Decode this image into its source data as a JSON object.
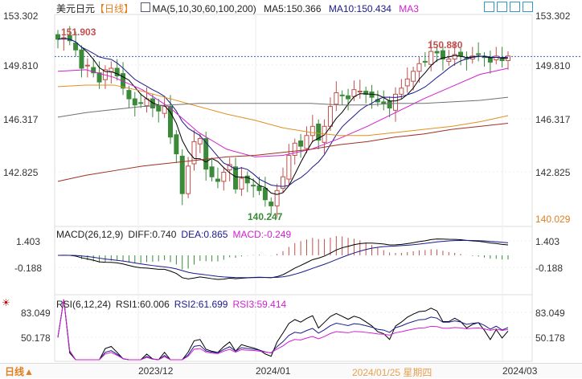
{
  "header": {
    "symbol": "美元日元",
    "period": "【日线】",
    "ma_label": "MA(5,10,30,60,100,200)",
    "ma5": "MA5:150.366",
    "ma10": "MA10:150.434",
    "ma3": "MA3"
  },
  "macd_header": {
    "label": "MACD(26,12,9)",
    "diff": "DIFF:0.740",
    "dea": "DEA:0.865",
    "macd": "MACD:-0.249"
  },
  "rsi_header": {
    "label": "RSI(6,12,24)",
    "rsi1": "RSI1:60.006",
    "rsi2": "RSI2:61.699",
    "rsi3": "RSI3:59.414"
  },
  "footer": {
    "period": "日线▲",
    "crosshair_date": "2024/01/25 星期四"
  },
  "colors": {
    "up": "#c0504d",
    "down": "#3a8a3a",
    "ma5": "#000000",
    "ma10": "#1a1a8c",
    "ma30": "#d020d0",
    "ma60": "#e09020",
    "ma100": "#707070",
    "ma200": "#a03020"
  },
  "chart_data": {
    "type": "candlestick",
    "price_ticks": [
      "153.302",
      "149.810",
      "146.317",
      "142.825"
    ],
    "last_label": "140.029",
    "annotations": {
      "high": "151.903",
      "low": "140.247",
      "recent_high": "150.880"
    },
    "x_ticks": [
      "2023/12",
      "2024/01",
      "2024/03"
    ],
    "macd_ticks": [
      "1.403",
      "-0.188"
    ],
    "rsi_ticks": [
      "83.049",
      "50.178"
    ],
    "closes": [
      151.5,
      151.6,
      151.4,
      150.8,
      149.6,
      149.8,
      149.3,
      148.7,
      149.5,
      149.6,
      149.1,
      148.3,
      147.6,
      147.2,
      147.3,
      147.6,
      147.0,
      146.8,
      147.1,
      145.1,
      144.0,
      141.4,
      143.2,
      144.8,
      145.0,
      143.0,
      142.5,
      142.2,
      142.8,
      143.3,
      141.7,
      142.4,
      142.1,
      141.9,
      141.6,
      141.0,
      140.6,
      141.6,
      142.5,
      143.9,
      144.7,
      144.5,
      145.2,
      145.8,
      144.9,
      145.8,
      147.1,
      148.0,
      147.8,
      147.6,
      148.2,
      148.1,
      147.9,
      147.7,
      147.4,
      147.3,
      147.0,
      147.9,
      148.3,
      148.9,
      149.4,
      149.9,
      150.0,
      150.7,
      150.6,
      150.2,
      150.2,
      150.5,
      150.4,
      150.2,
      150.4,
      150.5,
      150.3,
      150.0,
      150.4,
      150.1,
      150.4
    ],
    "ma_long": {
      "ma30": [
        149.4,
        149.5,
        149.0,
        148.2,
        147.0,
        145.4,
        144.3,
        143.8,
        143.9,
        144.3,
        145.0,
        145.8,
        146.7,
        147.6,
        148.4,
        149.2,
        149.6
      ],
      "ma60": [
        148.4,
        148.5,
        148.5,
        148.1,
        147.6,
        147.1,
        146.6,
        146.2,
        145.7,
        145.4,
        145.2,
        145.2,
        145.4,
        145.6,
        145.8,
        146.1,
        146.5
      ],
      "ma100": [
        146.4,
        146.7,
        146.9,
        147.1,
        147.2,
        147.3,
        147.3,
        147.3,
        147.3,
        147.3,
        147.2,
        147.2,
        147.3,
        147.3,
        147.4,
        147.5,
        147.7
      ],
      "ma200": [
        142.2,
        142.6,
        142.9,
        143.2,
        143.4,
        143.6,
        143.8,
        143.9,
        144.1,
        144.3,
        144.6,
        144.8,
        145.1,
        145.3,
        145.6,
        145.8,
        146.0
      ]
    }
  }
}
